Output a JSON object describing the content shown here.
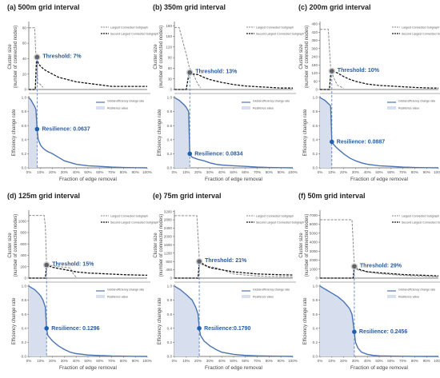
{
  "x_ticks": [
    "0%",
    "10%",
    "20%",
    "30%",
    "40%",
    "50%",
    "60%",
    "70%",
    "80%",
    "90%",
    "100%"
  ],
  "xlabel": "Fraction of edge removal",
  "ylabel_top_1": "Cluster size",
  "ylabel_top_2": "(number of connected nodes)",
  "ylabel_bottom": "Efficiency change rate",
  "legend_top": [
    "Largest Connected Subgraph",
    "Second Largest Connected Subgraph"
  ],
  "legend_bottom": [
    "Global efficiency change rate",
    "Resilience value"
  ],
  "colors": {
    "eff_line": "#4a74b4",
    "fill": "#d7dfee",
    "marker": "#1f5fb0",
    "gray_marker": "#606060",
    "annotation": "#2a5a99"
  },
  "chart_data": [
    {
      "type": "line",
      "title": "(a) 500m grid interval",
      "threshold": 0.07,
      "threshold_label": "Threshold: 7%",
      "resilience": 0.0637,
      "resilience_label": "Resilience: 0.0637",
      "top_ylim": [
        0,
        85
      ],
      "top_yticks": [
        0,
        20,
        40,
        60,
        80
      ],
      "largest": {
        "x": [
          0,
          0.02,
          0.04,
          0.05,
          0.06,
          0.07,
          0.075,
          0.09,
          0.1,
          0.11,
          0.12
        ],
        "y": [
          80,
          80,
          80,
          80,
          42,
          42,
          8,
          8,
          6,
          4,
          3
        ]
      },
      "second": {
        "x": [
          0,
          0.02,
          0.04,
          0.055,
          0.065,
          0.07,
          0.08,
          0.1,
          0.13,
          0.15,
          0.2,
          0.25,
          0.3,
          0.35,
          0.4,
          0.5,
          0.6,
          0.7,
          0.8,
          0.9,
          1.0
        ],
        "y": [
          0,
          0,
          0,
          0,
          38,
          42,
          34,
          30,
          26,
          24,
          20,
          16,
          14,
          12,
          10,
          8,
          6,
          4,
          4,
          4,
          4
        ]
      },
      "efficiency": {
        "x": [
          0,
          0.01,
          0.02,
          0.03,
          0.04,
          0.05,
          0.06,
          0.07,
          0.08,
          0.1,
          0.12,
          0.15,
          0.2,
          0.25,
          0.3,
          0.4,
          0.5,
          0.6,
          0.7,
          0.8,
          0.9,
          1.0
        ],
        "y": [
          1.0,
          0.98,
          0.96,
          0.93,
          0.9,
          0.87,
          0.83,
          0.55,
          0.4,
          0.32,
          0.28,
          0.24,
          0.2,
          0.15,
          0.1,
          0.05,
          0.03,
          0.02,
          0.01,
          0.005,
          0.002,
          0
        ]
      }
    },
    {
      "type": "line",
      "title": "(b) 350m grid interval",
      "threshold": 0.13,
      "threshold_label": "Threshold: 13%",
      "resilience": 0.0834,
      "resilience_label": "Resilience: 0.0834",
      "top_ylim": [
        0,
        185
      ],
      "top_yticks": [
        0,
        30,
        60,
        90,
        120,
        150,
        180
      ],
      "largest": {
        "x": [
          0,
          0.04,
          0.06,
          0.08,
          0.1,
          0.12,
          0.13,
          0.15,
          0.17,
          0.2,
          0.22
        ],
        "y": [
          175,
          175,
          150,
          125,
          100,
          70,
          60,
          50,
          35,
          15,
          5
        ]
      },
      "second": {
        "x": [
          0,
          0.05,
          0.1,
          0.12,
          0.13,
          0.15,
          0.2,
          0.25,
          0.3,
          0.35,
          0.4,
          0.5,
          0.6,
          0.7,
          0.8,
          0.9,
          1.0
        ],
        "y": [
          0,
          0,
          0,
          40,
          48,
          44,
          42,
          34,
          28,
          24,
          20,
          14,
          10,
          8,
          6,
          4,
          4
        ]
      },
      "efficiency": {
        "x": [
          0,
          0.02,
          0.04,
          0.06,
          0.08,
          0.1,
          0.12,
          0.13,
          0.15,
          0.2,
          0.25,
          0.3,
          0.35,
          0.4,
          0.5,
          0.6,
          0.7,
          0.8,
          0.9,
          1.0
        ],
        "y": [
          1.0,
          0.98,
          0.96,
          0.93,
          0.9,
          0.86,
          0.8,
          0.2,
          0.15,
          0.12,
          0.1,
          0.07,
          0.05,
          0.04,
          0.03,
          0.02,
          0.01,
          0.005,
          0.002,
          0
        ]
      }
    },
    {
      "type": "line",
      "title": "(c) 200m grid interval",
      "threshold": 0.1,
      "threshold_label": "Threshold: 10%",
      "resilience": 0.0887,
      "resilience_label": "Resilience: 0.0887",
      "top_ylim": [
        0,
        480
      ],
      "top_yticks": [
        0,
        60,
        120,
        180,
        240,
        300,
        360,
        420,
        480
      ],
      "largest": {
        "x": [
          0,
          0.06,
          0.07,
          0.08,
          0.09,
          0.1,
          0.11,
          0.13,
          0.15,
          0.2
        ],
        "y": [
          440,
          440,
          440,
          300,
          160,
          130,
          100,
          60,
          30,
          10
        ]
      },
      "second": {
        "x": [
          0,
          0.06,
          0.08,
          0.09,
          0.1,
          0.12,
          0.15,
          0.2,
          0.25,
          0.3,
          0.35,
          0.4,
          0.5,
          0.6,
          0.7,
          0.8,
          0.9,
          1.0
        ],
        "y": [
          0,
          0,
          0,
          110,
          135,
          130,
          120,
          95,
          75,
          60,
          50,
          40,
          30,
          25,
          20,
          15,
          12,
          10
        ]
      },
      "efficiency": {
        "x": [
          0,
          0.02,
          0.04,
          0.06,
          0.08,
          0.09,
          0.1,
          0.12,
          0.15,
          0.2,
          0.25,
          0.3,
          0.35,
          0.4,
          0.5,
          0.6,
          0.7,
          0.8,
          0.9,
          1.0
        ],
        "y": [
          1.0,
          0.98,
          0.96,
          0.93,
          0.9,
          0.88,
          0.37,
          0.32,
          0.27,
          0.2,
          0.14,
          0.1,
          0.07,
          0.05,
          0.03,
          0.02,
          0.01,
          0.005,
          0.002,
          0
        ]
      }
    },
    {
      "type": "line",
      "title": "(d) 125m grid interval",
      "threshold": 0.15,
      "threshold_label": "Threshold: 15%",
      "resilience": 0.1296,
      "resilience_label": "Resilience: 0.1296",
      "top_ylim": [
        0,
        1150
      ],
      "top_yticks": [
        0,
        200,
        400,
        600,
        800,
        1000
      ],
      "largest": {
        "x": [
          0,
          0.1,
          0.13,
          0.14,
          0.15,
          0.16,
          0.2,
          0.25,
          0.3,
          0.35,
          0.38,
          0.4
        ],
        "y": [
          1100,
          1100,
          1100,
          900,
          250,
          220,
          220,
          200,
          190,
          180,
          60,
          20
        ]
      },
      "second": {
        "x": [
          0,
          0.1,
          0.13,
          0.14,
          0.15,
          0.2,
          0.25,
          0.3,
          0.35,
          0.4,
          0.5,
          0.6,
          0.7,
          0.8,
          0.9,
          1.0
        ],
        "y": [
          0,
          0,
          0,
          0,
          230,
          190,
          170,
          150,
          130,
          110,
          90,
          80,
          70,
          60,
          55,
          50
        ]
      },
      "efficiency": {
        "x": [
          0,
          0.02,
          0.05,
          0.08,
          0.1,
          0.12,
          0.14,
          0.15,
          0.16,
          0.2,
          0.25,
          0.3,
          0.35,
          0.4,
          0.5,
          0.6,
          0.7,
          0.8,
          0.9,
          1.0
        ],
        "y": [
          1.0,
          0.98,
          0.95,
          0.9,
          0.86,
          0.8,
          0.7,
          0.4,
          0.3,
          0.22,
          0.15,
          0.1,
          0.06,
          0.04,
          0.02,
          0.012,
          0.006,
          0.003,
          0.001,
          0
        ]
      }
    },
    {
      "type": "line",
      "title": "(e) 75m grid interval",
      "threshold": 0.21,
      "threshold_label": "Threshold: 21%",
      "resilience": 0.179,
      "resilience_label": "Resilience:0.1790",
      "top_ylim": [
        0,
        3150
      ],
      "top_yticks": [
        0,
        400,
        800,
        1200,
        1600,
        2000,
        2400,
        2800,
        3200
      ],
      "largest": {
        "x": [
          0,
          0.15,
          0.19,
          0.2,
          0.21,
          0.22,
          0.25,
          0.3,
          0.35,
          0.4,
          0.45,
          0.5,
          0.6,
          0.7,
          0.8,
          0.9,
          1.0
        ],
        "y": [
          3000,
          3000,
          3000,
          2000,
          900,
          700,
          600,
          550,
          500,
          400,
          300,
          200,
          150,
          100,
          80,
          70,
          60
        ]
      },
      "second": {
        "x": [
          0,
          0.15,
          0.19,
          0.2,
          0.21,
          0.25,
          0.3,
          0.35,
          0.4,
          0.5,
          0.6,
          0.7,
          0.8,
          0.9,
          1.0
        ],
        "y": [
          0,
          0,
          0,
          0,
          800,
          650,
          500,
          450,
          400,
          300,
          250,
          200,
          180,
          160,
          150
        ]
      },
      "efficiency": {
        "x": [
          0,
          0.02,
          0.05,
          0.1,
          0.15,
          0.18,
          0.2,
          0.21,
          0.22,
          0.25,
          0.3,
          0.35,
          0.4,
          0.5,
          0.6,
          0.7,
          0.8,
          0.9,
          1.0
        ],
        "y": [
          1.0,
          0.98,
          0.95,
          0.88,
          0.8,
          0.7,
          0.6,
          0.4,
          0.3,
          0.22,
          0.15,
          0.1,
          0.06,
          0.03,
          0.015,
          0.008,
          0.004,
          0.002,
          0
        ]
      }
    },
    {
      "type": "line",
      "title": "(f) 50m grid interval",
      "threshold": 0.29,
      "threshold_label": "Threshold: 29%",
      "resilience": 0.2456,
      "resilience_label": "Resilience: 0.2456",
      "top_ylim": [
        0,
        7300
      ],
      "top_yticks": [
        0,
        1000,
        2000,
        3000,
        4000,
        5000,
        6000,
        7000
      ],
      "largest": {
        "x": [
          0,
          0.2,
          0.27,
          0.28,
          0.29,
          0.3,
          0.35,
          0.4,
          0.5,
          0.6,
          0.7,
          0.8,
          0.9,
          1.0
        ],
        "y": [
          6500,
          6500,
          6500,
          4000,
          1500,
          1000,
          800,
          700,
          500,
          400,
          300,
          250,
          200,
          150
        ]
      },
      "second": {
        "x": [
          0,
          0.2,
          0.27,
          0.28,
          0.29,
          0.3,
          0.35,
          0.4,
          0.5,
          0.6,
          0.7,
          0.8,
          0.9,
          1.0
        ],
        "y": [
          0,
          0,
          0,
          0,
          1300,
          1100,
          900,
          700,
          600,
          500,
          400,
          350,
          300,
          250
        ]
      },
      "efficiency": {
        "x": [
          0,
          0.02,
          0.05,
          0.1,
          0.15,
          0.2,
          0.25,
          0.27,
          0.29,
          0.3,
          0.32,
          0.35,
          0.4,
          0.45,
          0.5,
          0.6,
          0.7,
          0.8,
          0.9,
          1.0
        ],
        "y": [
          1.0,
          0.98,
          0.95,
          0.9,
          0.85,
          0.78,
          0.68,
          0.6,
          0.35,
          0.2,
          0.12,
          0.06,
          0.03,
          0.015,
          0.008,
          0.004,
          0.002,
          0.001,
          0.0005,
          0
        ]
      }
    }
  ]
}
